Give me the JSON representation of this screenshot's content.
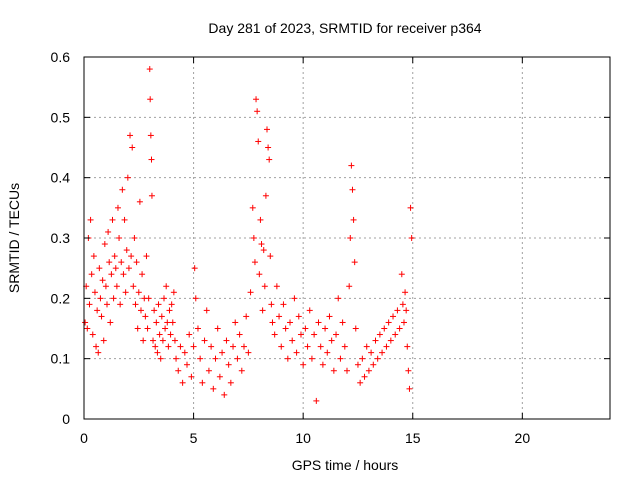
{
  "chart_data": {
    "type": "scatter",
    "title": "Day 281 of 2023, SRMTID for receiver p364",
    "xlabel": "GPS time / hours",
    "ylabel": "SRMTID / TECUs",
    "xlim": [
      0,
      24
    ],
    "ylim": [
      0,
      0.6
    ],
    "x_ticks": [
      0,
      5,
      10,
      15,
      20
    ],
    "x_tick_labels": [
      "0",
      "5",
      "10",
      "15",
      "20"
    ],
    "y_ticks": [
      0,
      0.1,
      0.2,
      0.3,
      0.4,
      0.5,
      0.6
    ],
    "y_tick_labels": [
      "0",
      "0.1",
      "0.2",
      "0.3",
      "0.4",
      "0.5",
      "0.6"
    ],
    "grid": true,
    "marker": "+",
    "color": "#ff0000",
    "series": [
      {
        "name": "SRMTID",
        "points": [
          [
            0.05,
            0.16
          ],
          [
            0.1,
            0.22
          ],
          [
            0.15,
            0.15
          ],
          [
            0.2,
            0.3
          ],
          [
            0.25,
            0.19
          ],
          [
            0.3,
            0.33
          ],
          [
            0.35,
            0.24
          ],
          [
            0.4,
            0.14
          ],
          [
            0.45,
            0.27
          ],
          [
            0.5,
            0.21
          ],
          [
            0.55,
            0.12
          ],
          [
            0.6,
            0.18
          ],
          [
            0.65,
            0.11
          ],
          [
            0.7,
            0.25
          ],
          [
            0.75,
            0.2
          ],
          [
            0.8,
            0.17
          ],
          [
            0.85,
            0.23
          ],
          [
            0.9,
            0.13
          ],
          [
            0.95,
            0.29
          ],
          [
            1.0,
            0.22
          ],
          [
            1.05,
            0.19
          ],
          [
            1.1,
            0.31
          ],
          [
            1.15,
            0.26
          ],
          [
            1.2,
            0.16
          ],
          [
            1.25,
            0.24
          ],
          [
            1.3,
            0.33
          ],
          [
            1.35,
            0.2
          ],
          [
            1.4,
            0.27
          ],
          [
            1.45,
            0.25
          ],
          [
            1.5,
            0.22
          ],
          [
            1.55,
            0.35
          ],
          [
            1.6,
            0.3
          ],
          [
            1.65,
            0.19
          ],
          [
            1.7,
            0.26
          ],
          [
            1.75,
            0.38
          ],
          [
            1.8,
            0.24
          ],
          [
            1.85,
            0.33
          ],
          [
            1.9,
            0.21
          ],
          [
            1.95,
            0.28
          ],
          [
            2.0,
            0.4
          ],
          [
            2.05,
            0.25
          ],
          [
            2.1,
            0.47
          ],
          [
            2.15,
            0.27
          ],
          [
            2.2,
            0.45
          ],
          [
            2.25,
            0.22
          ],
          [
            2.3,
            0.3
          ],
          [
            2.35,
            0.19
          ],
          [
            2.4,
            0.26
          ],
          [
            2.45,
            0.15
          ],
          [
            2.5,
            0.21
          ],
          [
            2.55,
            0.36
          ],
          [
            2.6,
            0.18
          ],
          [
            2.65,
            0.24
          ],
          [
            2.7,
            0.13
          ],
          [
            2.75,
            0.2
          ],
          [
            2.8,
            0.17
          ],
          [
            2.85,
            0.27
          ],
          [
            2.9,
            0.15
          ],
          [
            2.95,
            0.2
          ],
          [
            3.0,
            0.58
          ],
          [
            3.02,
            0.53
          ],
          [
            3.05,
            0.47
          ],
          [
            3.08,
            0.43
          ],
          [
            3.1,
            0.37
          ],
          [
            3.15,
            0.13
          ],
          [
            3.2,
            0.18
          ],
          [
            3.25,
            0.12
          ],
          [
            3.3,
            0.16
          ],
          [
            3.35,
            0.11
          ],
          [
            3.4,
            0.19
          ],
          [
            3.45,
            0.14
          ],
          [
            3.5,
            0.1
          ],
          [
            3.55,
            0.17
          ],
          [
            3.6,
            0.13
          ],
          [
            3.65,
            0.2
          ],
          [
            3.7,
            0.15
          ],
          [
            3.75,
            0.22
          ],
          [
            3.8,
            0.16
          ],
          [
            3.85,
            0.12
          ],
          [
            3.9,
            0.18
          ],
          [
            3.95,
            0.14
          ],
          [
            4.0,
            0.19
          ],
          [
            4.05,
            0.16
          ],
          [
            4.1,
            0.21
          ],
          [
            4.15,
            0.13
          ],
          [
            4.2,
            0.1
          ],
          [
            4.3,
            0.08
          ],
          [
            4.4,
            0.12
          ],
          [
            4.5,
            0.06
          ],
          [
            4.6,
            0.11
          ],
          [
            4.7,
            0.09
          ],
          [
            4.8,
            0.14
          ],
          [
            4.9,
            0.07
          ],
          [
            5.0,
            0.12
          ],
          [
            5.05,
            0.25
          ],
          [
            5.1,
            0.2
          ],
          [
            5.2,
            0.15
          ],
          [
            5.3,
            0.1
          ],
          [
            5.4,
            0.06
          ],
          [
            5.5,
            0.13
          ],
          [
            5.6,
            0.18
          ],
          [
            5.7,
            0.08
          ],
          [
            5.8,
            0.12
          ],
          [
            5.9,
            0.05
          ],
          [
            6.0,
            0.1
          ],
          [
            6.1,
            0.15
          ],
          [
            6.2,
            0.07
          ],
          [
            6.3,
            0.11
          ],
          [
            6.4,
            0.04
          ],
          [
            6.5,
            0.13
          ],
          [
            6.6,
            0.09
          ],
          [
            6.7,
            0.06
          ],
          [
            6.8,
            0.12
          ],
          [
            6.9,
            0.16
          ],
          [
            7.0,
            0.1
          ],
          [
            7.1,
            0.14
          ],
          [
            7.2,
            0.08
          ],
          [
            7.3,
            0.12
          ],
          [
            7.4,
            0.17
          ],
          [
            7.5,
            0.11
          ],
          [
            7.6,
            0.21
          ],
          [
            7.7,
            0.35
          ],
          [
            7.75,
            0.3
          ],
          [
            7.8,
            0.26
          ],
          [
            7.85,
            0.53
          ],
          [
            7.9,
            0.51
          ],
          [
            7.95,
            0.46
          ],
          [
            8.0,
            0.24
          ],
          [
            8.05,
            0.33
          ],
          [
            8.1,
            0.29
          ],
          [
            8.15,
            0.18
          ],
          [
            8.2,
            0.28
          ],
          [
            8.25,
            0.22
          ],
          [
            8.3,
            0.37
          ],
          [
            8.35,
            0.48
          ],
          [
            8.4,
            0.45
          ],
          [
            8.45,
            0.43
          ],
          [
            8.5,
            0.27
          ],
          [
            8.55,
            0.19
          ],
          [
            8.6,
            0.16
          ],
          [
            8.7,
            0.14
          ],
          [
            8.8,
            0.22
          ],
          [
            8.9,
            0.17
          ],
          [
            9.0,
            0.12
          ],
          [
            9.1,
            0.19
          ],
          [
            9.2,
            0.15
          ],
          [
            9.3,
            0.1
          ],
          [
            9.4,
            0.16
          ],
          [
            9.5,
            0.13
          ],
          [
            9.6,
            0.2
          ],
          [
            9.7,
            0.11
          ],
          [
            9.8,
            0.17
          ],
          [
            9.9,
            0.14
          ],
          [
            10.0,
            0.09
          ],
          [
            10.1,
            0.15
          ],
          [
            10.2,
            0.12
          ],
          [
            10.3,
            0.18
          ],
          [
            10.4,
            0.1
          ],
          [
            10.5,
            0.14
          ],
          [
            10.6,
            0.03
          ],
          [
            10.7,
            0.16
          ],
          [
            10.8,
            0.12
          ],
          [
            10.9,
            0.09
          ],
          [
            11.0,
            0.15
          ],
          [
            11.1,
            0.11
          ],
          [
            11.2,
            0.17
          ],
          [
            11.3,
            0.13
          ],
          [
            11.4,
            0.08
          ],
          [
            11.5,
            0.14
          ],
          [
            11.6,
            0.2
          ],
          [
            11.7,
            0.1
          ],
          [
            11.8,
            0.16
          ],
          [
            11.9,
            0.12
          ],
          [
            12.0,
            0.08
          ],
          [
            12.1,
            0.22
          ],
          [
            12.15,
            0.3
          ],
          [
            12.2,
            0.42
          ],
          [
            12.25,
            0.38
          ],
          [
            12.3,
            0.33
          ],
          [
            12.35,
            0.26
          ],
          [
            12.4,
            0.15
          ],
          [
            12.5,
            0.09
          ],
          [
            12.6,
            0.06
          ],
          [
            12.7,
            0.1
          ],
          [
            12.8,
            0.07
          ],
          [
            12.9,
            0.12
          ],
          [
            13.0,
            0.08
          ],
          [
            13.1,
            0.11
          ],
          [
            13.2,
            0.09
          ],
          [
            13.3,
            0.13
          ],
          [
            13.4,
            0.1
          ],
          [
            13.5,
            0.14
          ],
          [
            13.6,
            0.11
          ],
          [
            13.7,
            0.15
          ],
          [
            13.8,
            0.12
          ],
          [
            13.9,
            0.16
          ],
          [
            14.0,
            0.13
          ],
          [
            14.1,
            0.17
          ],
          [
            14.2,
            0.14
          ],
          [
            14.3,
            0.18
          ],
          [
            14.4,
            0.15
          ],
          [
            14.5,
            0.24
          ],
          [
            14.55,
            0.19
          ],
          [
            14.6,
            0.16
          ],
          [
            14.65,
            0.21
          ],
          [
            14.7,
            0.18
          ],
          [
            14.75,
            0.12
          ],
          [
            14.8,
            0.08
          ],
          [
            14.85,
            0.05
          ],
          [
            14.9,
            0.35
          ],
          [
            14.95,
            0.3
          ]
        ]
      }
    ]
  }
}
